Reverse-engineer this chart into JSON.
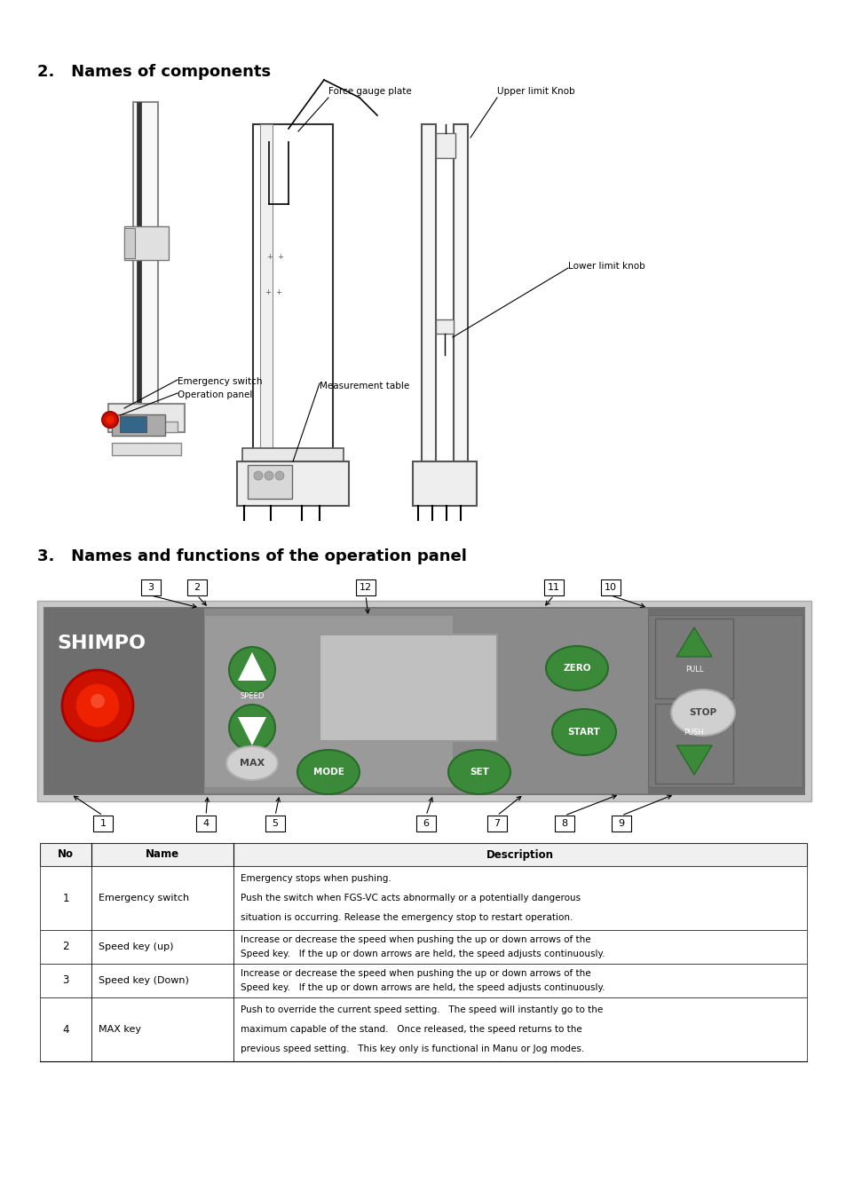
{
  "background_color": "#ffffff",
  "section2_title": "2.   Names of components",
  "section3_title": "3.   Names and functions of the operation panel",
  "table_headers": [
    "No",
    "Name",
    "Description"
  ],
  "table_rows": [
    {
      "no": "1",
      "name": "Emergency switch",
      "desc_lines": [
        "Emergency stops when pushing.",
        "Push the switch when FGS-VC acts abnormally or a potentially dangerous",
        "situation is occurring. Release the emergency stop to restart operation."
      ]
    },
    {
      "no": "2",
      "name": "Speed key (up)",
      "desc_lines": [
        "Increase or decrease the speed when pushing the up or down arrows of the",
        "Speed key.   If the up or down arrows are held, the speed adjusts continuously."
      ]
    },
    {
      "no": "3",
      "name": "Speed key (Down)",
      "desc_lines": [
        "Increase or decrease the speed when pushing the up or down arrows of the",
        "Speed key.   If the up or down arrows are held, the speed adjusts continuously."
      ]
    },
    {
      "no": "4",
      "name": "MAX key",
      "desc_lines": [
        "Push to override the current speed setting.   The speed will instantly go to the",
        "maximum capable of the stand.   Once released, the speed returns to the",
        "previous speed setting.   This key only is functional in Manu or Jog modes."
      ]
    }
  ],
  "panel_outer_color": "#c0c0c0",
  "panel_inner_color": "#8c8c8c",
  "panel_dark_section_color": "#6e6e6e",
  "panel_mid_section_color": "#909090",
  "panel_light_section_color": "#b0b0b0",
  "emergency_btn_color": "#cc1100",
  "green_btn_color": "#3a8a3a",
  "green_btn_dark": "#2a6a2a",
  "max_btn_color": "#d8d8d8",
  "stop_btn_color": "#d8d8d8",
  "screen_color": "#c8c8c8",
  "shimpo_text": "SHIMPO"
}
